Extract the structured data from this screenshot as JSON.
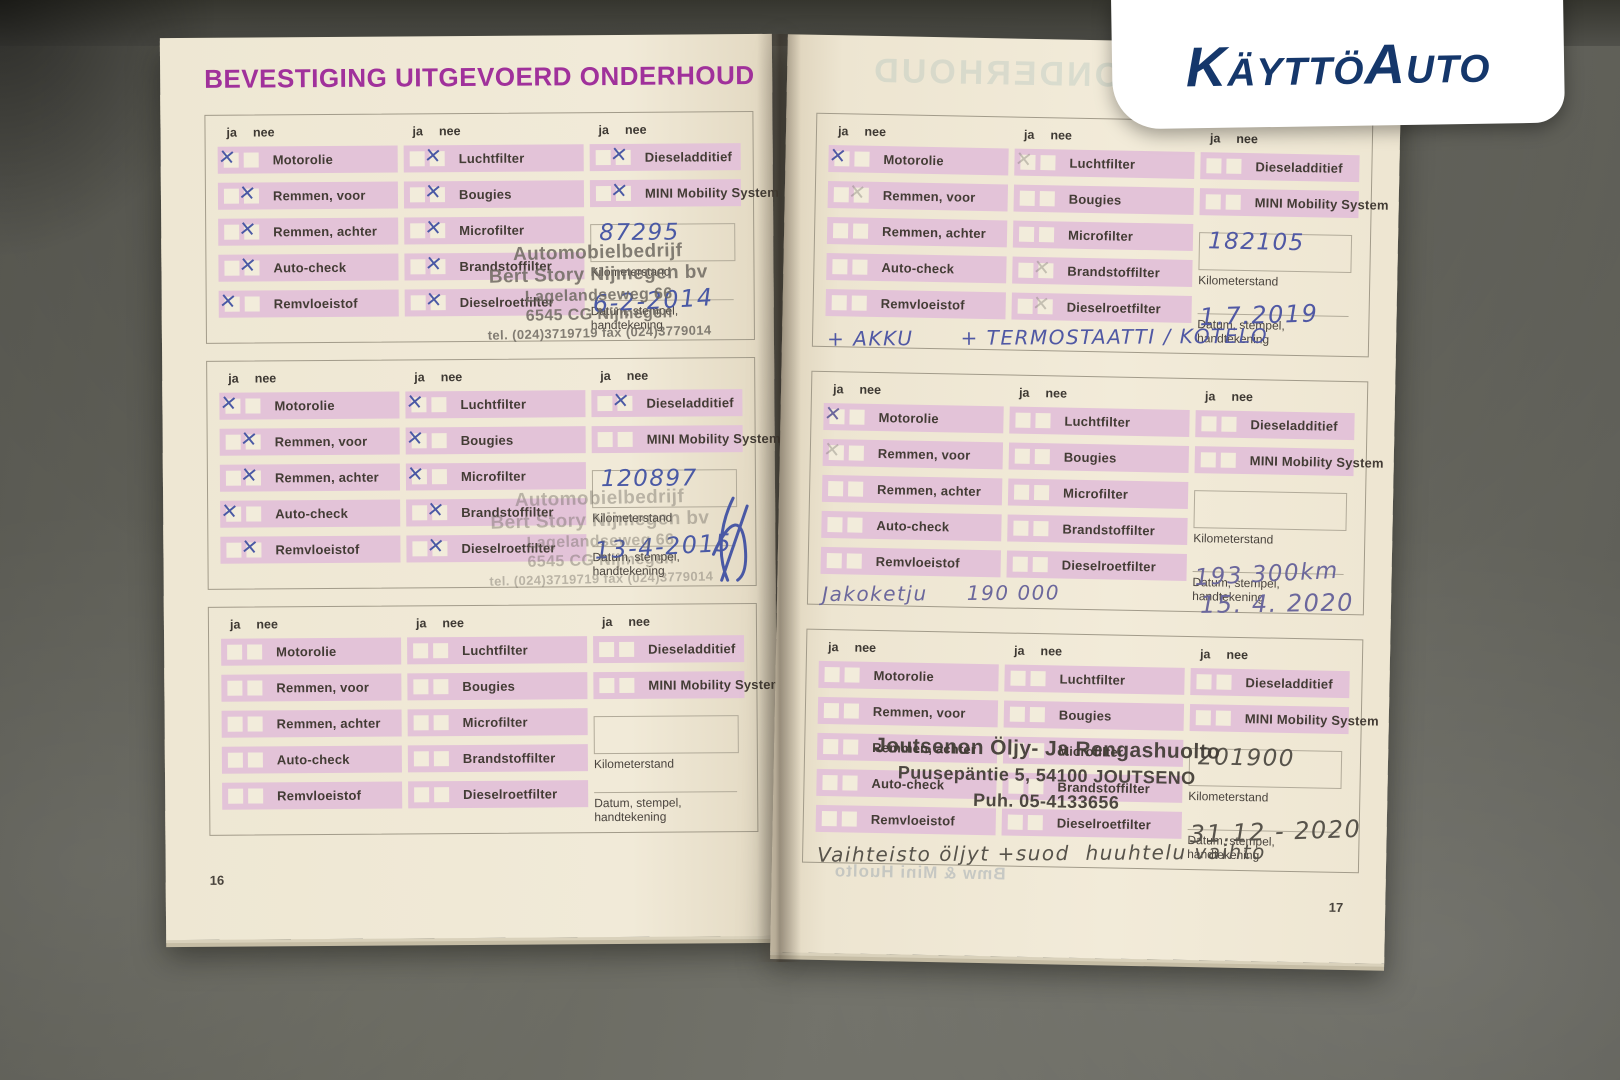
{
  "logo": {
    "text": "KäyttöAuto",
    "color": "#15376b",
    "background": "#ffffff"
  },
  "title": "BEVESTIGING UITGEVOERD ONDERHOUD",
  "colors": {
    "title_purple": "#a0319b",
    "row_pink": "#e3c3d8",
    "ink_blue": "#4a59a5",
    "pencil_gray": "#57534b",
    "logo_navy": "#15376b"
  },
  "headers": {
    "ja": "ja",
    "nee": "nee"
  },
  "labels": {
    "col1": [
      "Motorolie",
      "Remmen, voor",
      "Remmen, achter",
      "Auto-check",
      "Remvloeistof"
    ],
    "col2": [
      "Luchtfilter",
      "Bougies",
      "Microfilter",
      "Brandstoffilter",
      "Dieselroetfilter"
    ],
    "col3": [
      "Dieseladditief",
      "MINI Mobility System"
    ],
    "kilometerstand": "Kilometerstand",
    "datum": "Datum, stempel, handtekening"
  },
  "stamps": {
    "bert_story": [
      "Automobielbedrijf",
      "Bert Story Nijmegen bv",
      "Lagelandseweg 66",
      "6545 CG  Nijmegen",
      "tel. (024)3719719  fax (024)3779014"
    ],
    "joutsenon": [
      "Joutsenon Öljy- Ja Rengashuolto",
      "Puusepäntie 5, 54100 JOUTSENO",
      "Puh. 05-4133656"
    ]
  },
  "pages": {
    "left": {
      "number": "16",
      "blocks": [
        {
          "checks_col1": [
            "ja",
            "nee",
            "nee",
            "nee",
            "ja"
          ],
          "checks_col2": [
            "nee",
            "nee",
            "nee",
            "nee",
            "nee"
          ],
          "checks_col3": [
            "nee",
            "nee"
          ],
          "km_box": "87295",
          "date_line": "6-2-2014",
          "stamp": "bert_story",
          "stamp_opacity": 0.85,
          "ink": "#4a59a5"
        },
        {
          "checks_col1": [
            "ja",
            "nee",
            "nee",
            "ja",
            "nee"
          ],
          "checks_col2": [
            "ja",
            "ja",
            "ja",
            "nee",
            "nee"
          ],
          "checks_col3": [
            "nee",
            ""
          ],
          "km_box": "120897",
          "date_line": "13-4-2015",
          "stamp": "bert_story",
          "stamp_opacity": 0.42,
          "signature": true,
          "ink": "#4a59a5"
        },
        {
          "checks_col1": [
            "",
            "",
            "",
            "",
            ""
          ],
          "checks_col2": [
            "",
            "",
            "",
            "",
            ""
          ],
          "checks_col3": [
            "",
            ""
          ]
        }
      ]
    },
    "right": {
      "number": "17",
      "show_through_top": "ONDERHOUD",
      "show_through_bottom": "Bmw & Mini Huolto",
      "blocks": [
        {
          "checks_col1": [
            "ja",
            "nee-faint",
            "",
            "",
            ""
          ],
          "checks_col2": [
            "ja-faint",
            "",
            "",
            "nee-faint",
            "nee-faint"
          ],
          "checks_col3": [
            "",
            ""
          ],
          "km_box": "182105",
          "date_line": "1.7.2019",
          "note": "+ AKKU      + TERMOSTAATTI / KOTELO",
          "ink": "#5058a4"
        },
        {
          "checks_col1": [
            "ja",
            "ja-faint",
            "",
            "",
            ""
          ],
          "checks_col2": [
            "",
            "",
            "",
            "",
            ""
          ],
          "checks_col3": [
            "",
            ""
          ],
          "km_line": "193 300km",
          "date_below": "15. 4. 2020",
          "note": "Jakoketju     190 000",
          "ink": "#6b679c"
        },
        {
          "checks_col1": [
            "",
            "",
            "",
            "",
            ""
          ],
          "checks_col2": [
            "",
            "",
            "",
            "",
            ""
          ],
          "checks_col3": [
            "",
            ""
          ],
          "km_box": "201900",
          "date_line": "31.12 - 2020",
          "stamp": "joutsenon",
          "stamp_opacity": 0.92,
          "note": "Vaihteisto öljyt +suod  huuhtelu vaihto",
          "ink": "#57534b"
        }
      ]
    }
  }
}
